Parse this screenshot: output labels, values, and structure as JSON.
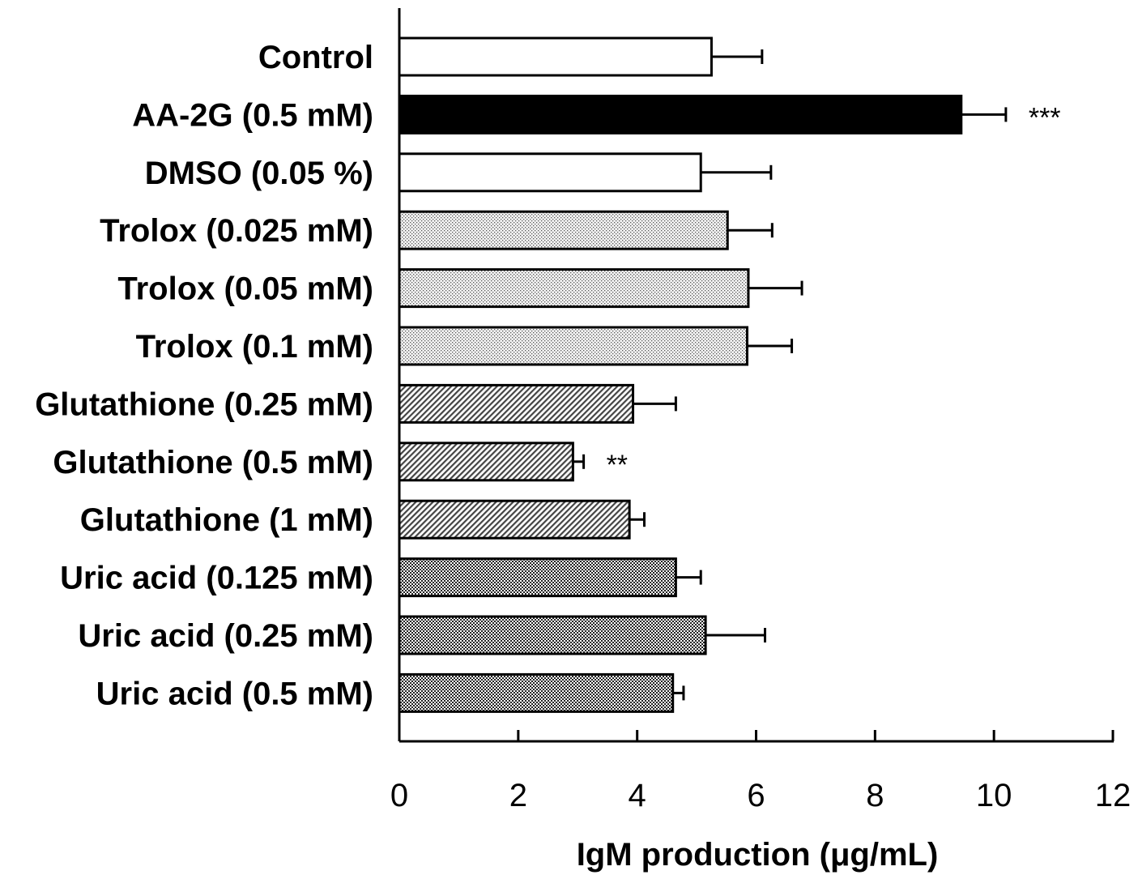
{
  "chart_data": {
    "type": "bar",
    "orientation": "horizontal",
    "title": "",
    "xlabel": "IgM production (μg/mL)",
    "ylabel": "",
    "xlim": [
      0,
      12
    ],
    "xticks": [
      "0",
      "2",
      "4",
      "6",
      "8",
      "10",
      "12"
    ],
    "grid": false,
    "categories": [
      "Control",
      "AA-2G (0.5 mM)",
      "DMSO (0.05 %)",
      "Trolox (0.025 mM)",
      "Trolox (0.05 mM)",
      "Trolox (0.1 mM)",
      "Glutathione (0.25 mM)",
      "Glutathione (0.5 mM)",
      "Glutathione (1 mM)",
      "Uric acid (0.125 mM)",
      "Uric acid (0.25 mM)",
      "Uric acid (0.5 mM)"
    ],
    "values": [
      5.25,
      9.45,
      5.07,
      5.52,
      5.87,
      5.85,
      3.93,
      2.92,
      3.87,
      4.65,
      5.15,
      4.6
    ],
    "errors": [
      0.85,
      0.75,
      1.18,
      0.75,
      0.9,
      0.75,
      0.72,
      0.18,
      0.25,
      0.42,
      1.0,
      0.18
    ],
    "fills": [
      "white",
      "black",
      "white",
      "dots",
      "dots",
      "dots",
      "hatch",
      "hatch",
      "hatch",
      "checker",
      "checker",
      "checker"
    ],
    "significance": [
      "",
      "***",
      "",
      "",
      "",
      "",
      "",
      "**",
      "",
      "",
      "",
      ""
    ]
  }
}
